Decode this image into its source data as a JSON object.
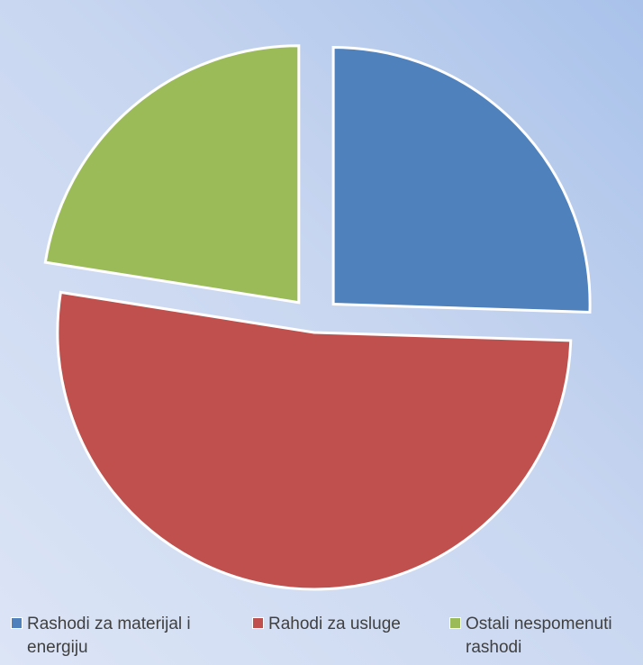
{
  "chart_data": {
    "type": "pie",
    "categories": [
      "Rashodi za materijal i energiju",
      "Rahodi za usluge",
      "Ostali nespomenuti rashodi"
    ],
    "values": [
      25.5,
      52.0,
      22.5
    ],
    "colors": [
      "#4f81bd",
      "#c0504d",
      "#9bbb59"
    ],
    "title": "",
    "legend_position": "bottom",
    "exploded": true
  },
  "legend": {
    "items": [
      {
        "label": "Rashodi za materijal i energiju",
        "color": "#4f81bd"
      },
      {
        "label": "Rahodi za usluge",
        "color": "#c0504d"
      },
      {
        "label": "Ostali nespomenuti rashodi",
        "color": "#9bbb59"
      }
    ]
  }
}
